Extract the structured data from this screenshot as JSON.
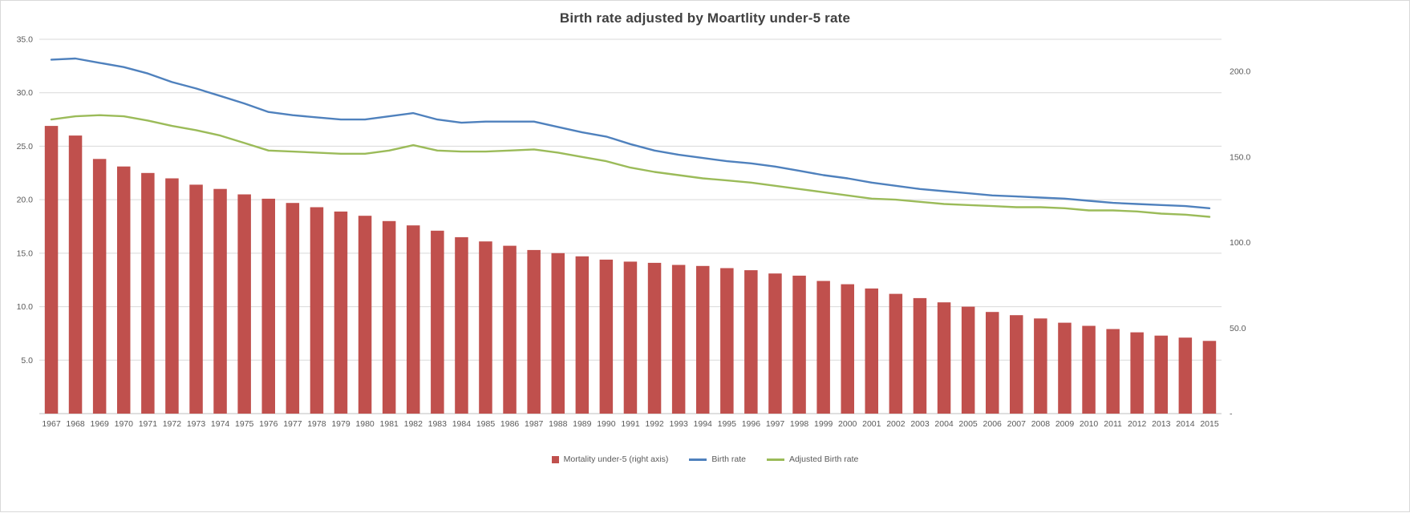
{
  "chart_data": {
    "type": "combo",
    "title": "Birth rate adjusted by Moartlity under-5 rate",
    "legend_position": "bottom",
    "grid": true,
    "categories": [
      "1967",
      "1968",
      "1969",
      "1970",
      "1971",
      "1972",
      "1973",
      "1974",
      "1975",
      "1976",
      "1977",
      "1978",
      "1979",
      "1980",
      "1981",
      "1982",
      "1983",
      "1984",
      "1985",
      "1986",
      "1987",
      "1988",
      "1989",
      "1990",
      "1991",
      "1992",
      "1993",
      "1994",
      "1995",
      "1996",
      "1997",
      "1998",
      "1999",
      "2000",
      "2001",
      "2002",
      "2003",
      "2004",
      "2005",
      "2006",
      "2007",
      "2008",
      "2009",
      "2010",
      "2011",
      "2012",
      "2013",
      "2014",
      "2015"
    ],
    "series": [
      {
        "name": "Mortality under-5 (right axis)",
        "type": "bar",
        "axis": "right",
        "color": "#C0504D",
        "values": [
          168.1,
          162.5,
          148.8,
          144.4,
          140.6,
          137.5,
          133.8,
          131.3,
          128.1,
          125.6,
          123.1,
          120.6,
          118.1,
          115.6,
          112.5,
          110.0,
          106.9,
          103.1,
          100.6,
          98.1,
          95.6,
          93.8,
          91.9,
          90.0,
          88.8,
          88.1,
          86.9,
          86.3,
          85.0,
          83.8,
          81.9,
          80.6,
          77.5,
          75.6,
          73.1,
          70.0,
          67.5,
          65.0,
          62.5,
          59.4,
          57.5,
          55.6,
          53.1,
          51.3,
          49.4,
          47.5,
          45.6,
          44.4,
          42.5
        ]
      },
      {
        "name": "Birth rate",
        "type": "line",
        "axis": "left",
        "color": "#4F81BD",
        "values": [
          33.1,
          33.2,
          32.8,
          32.4,
          31.8,
          31.0,
          30.4,
          29.7,
          29.0,
          28.2,
          27.9,
          27.7,
          27.5,
          27.5,
          27.8,
          28.1,
          27.5,
          27.2,
          27.3,
          27.3,
          27.3,
          26.8,
          26.3,
          25.9,
          25.2,
          24.6,
          24.2,
          23.9,
          23.6,
          23.4,
          23.1,
          22.7,
          22.3,
          22.0,
          21.6,
          21.3,
          21.0,
          20.8,
          20.6,
          20.4,
          20.3,
          20.2,
          20.1,
          19.9,
          19.7,
          19.6,
          19.5,
          19.4,
          19.2
        ]
      },
      {
        "name": "Adjusted Birth rate",
        "type": "line",
        "axis": "left",
        "color": "#9BBB59",
        "values": [
          27.5,
          27.8,
          27.9,
          27.8,
          27.4,
          26.9,
          26.5,
          26.0,
          25.3,
          24.6,
          24.5,
          24.4,
          24.3,
          24.3,
          24.6,
          25.1,
          24.6,
          24.5,
          24.5,
          24.6,
          24.7,
          24.4,
          24.0,
          23.6,
          23.0,
          22.6,
          22.3,
          22.0,
          21.8,
          21.6,
          21.3,
          21.0,
          20.7,
          20.4,
          20.1,
          20.0,
          19.8,
          19.6,
          19.5,
          19.4,
          19.3,
          19.3,
          19.2,
          19.0,
          19.0,
          18.9,
          18.7,
          18.6,
          18.4
        ]
      }
    ],
    "axes": {
      "left": {
        "min": 0,
        "max": 35,
        "ticks": [
          35,
          30,
          25,
          20,
          15,
          10,
          5
        ],
        "tick_labels": [
          "35.0",
          "30.0",
          "25.0",
          "20.0",
          "15.0",
          "10.0",
          "5.0"
        ]
      },
      "right": {
        "min": 0,
        "max": 218.75,
        "ticks": [
          200,
          150,
          100,
          50,
          0
        ],
        "tick_labels": [
          "200.0",
          "150.0",
          "100.0",
          "50.0",
          "-"
        ]
      }
    },
    "colors": {
      "grid": "#D9D9D9",
      "baseline": "#BFBFBF",
      "axis_text": "#595959",
      "title": "#404040"
    }
  }
}
